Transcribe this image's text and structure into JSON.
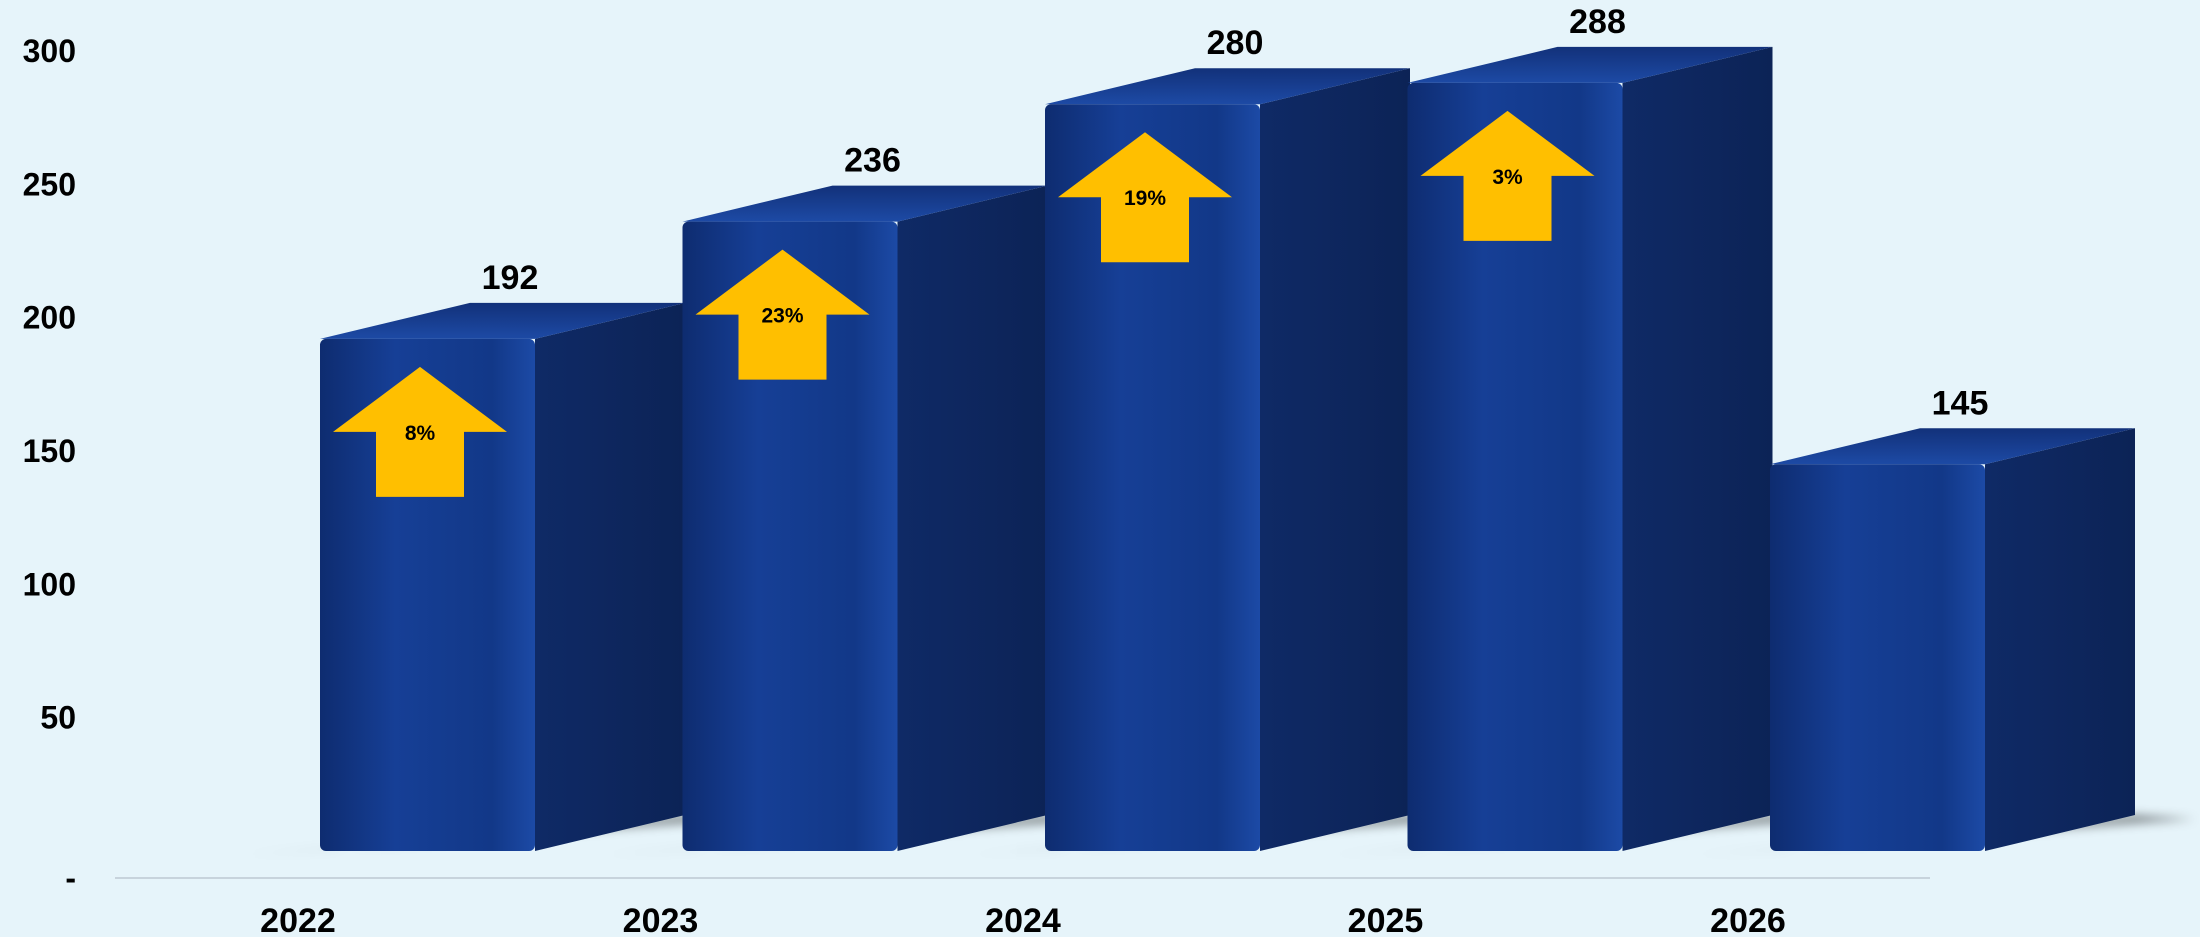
{
  "chart_data": {
    "type": "bar",
    "title": "",
    "xlabel": "",
    "ylabel": "",
    "categories": [
      "2022",
      "2023",
      "2024",
      "2025",
      "2026"
    ],
    "values": [
      192,
      236,
      280,
      288,
      145
    ],
    "value_labels": [
      "192",
      "236",
      "280",
      "288",
      "145"
    ],
    "growth_labels": [
      "8%",
      "23%",
      "19%",
      "3%"
    ],
    "yticks": [
      {
        "value": 0,
        "label": "-"
      },
      {
        "value": 50,
        "label": "50"
      },
      {
        "value": 100,
        "label": "100"
      },
      {
        "value": 150,
        "label": "150"
      },
      {
        "value": 200,
        "label": "200"
      },
      {
        "value": 250,
        "label": "250"
      },
      {
        "value": 300,
        "label": "300"
      }
    ],
    "ylim": [
      0,
      300
    ],
    "grid": false,
    "style": "3d",
    "bar_color": "#123a8f",
    "arrow_color": "#ffbf00",
    "background_color": "#e6f4fa"
  }
}
